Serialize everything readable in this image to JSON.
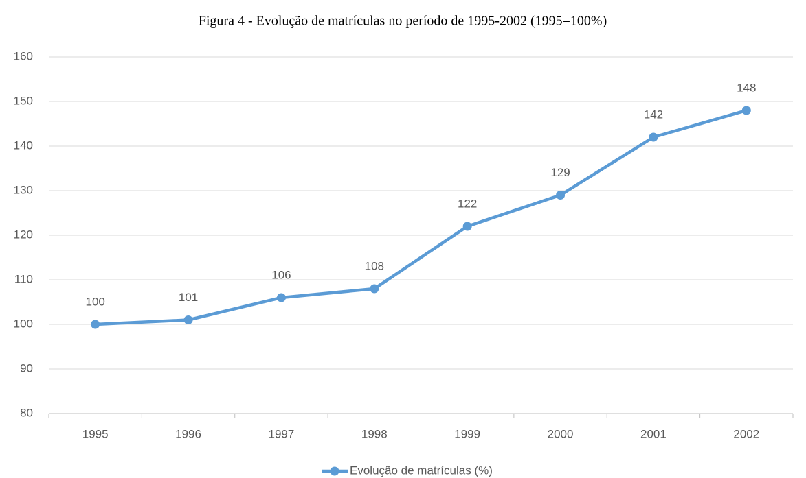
{
  "chart_data": {
    "type": "line",
    "title": "Figura 4 - Evolução de matrículas no período de 1995-2002 (1995=100%)",
    "categories": [
      "1995",
      "1996",
      "1997",
      "1998",
      "1999",
      "2000",
      "2001",
      "2002"
    ],
    "series": [
      {
        "name": "Evolução de matrículas (%)",
        "color": "#5b9bd5",
        "values": [
          100,
          101,
          106,
          108,
          122,
          129,
          142,
          148
        ]
      }
    ],
    "ylim": [
      80,
      160
    ],
    "yticks": [
      80,
      90,
      100,
      110,
      120,
      130,
      140,
      150,
      160
    ],
    "grid": true,
    "legend": "bottom"
  }
}
